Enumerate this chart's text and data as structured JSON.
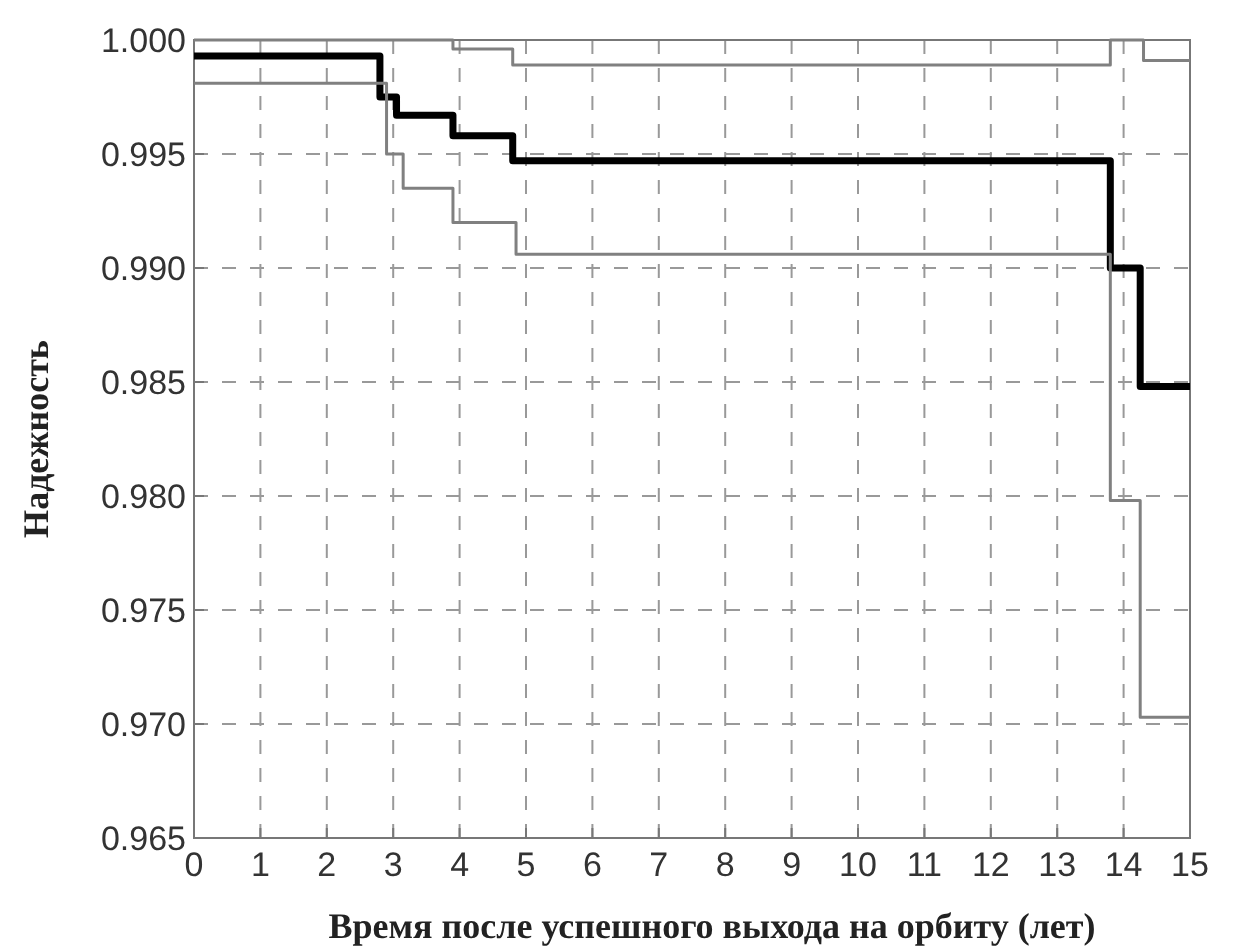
{
  "chart_data": {
    "type": "step",
    "xlabel": "Время после успешного выхода на орбиту (лет)",
    "ylabel": "Надежность",
    "xlim": [
      0,
      15
    ],
    "xticks": [
      0,
      1,
      2,
      3,
      4,
      5,
      6,
      7,
      8,
      9,
      10,
      11,
      12,
      13,
      14,
      15
    ],
    "ylim": [
      0.965,
      1.0
    ],
    "yticks": [
      0.965,
      {
        "value": 0.97,
        "label": "0.970"
      },
      0.975,
      {
        "value": 0.98,
        "label": "0.980"
      },
      0.985,
      {
        "value": 0.99,
        "label": "0.990"
      },
      0.995,
      {
        "value": 1.0,
        "label": "1.000"
      }
    ],
    "grid": true,
    "line_style": "solid",
    "marker": "none",
    "series": [
      {
        "color": "#000000",
        "x": [
          0,
          2.8,
          3.05,
          3.9,
          4.8,
          13.8,
          14.25,
          15
        ],
        "values": [
          0.9993,
          0.9975,
          0.9967,
          0.9958,
          0.9947,
          0.99,
          0.9848,
          0.9848
        ]
      },
      {
        "color": "#808080",
        "x": [
          0,
          3.9,
          4.8,
          13.8,
          14.3,
          15
        ],
        "values": [
          1.0,
          0.9996,
          0.9989,
          1.0,
          0.9991,
          0.9991
        ]
      },
      {
        "color": "#808080",
        "x": [
          0,
          2.9,
          3.15,
          3.9,
          4.85,
          13.8,
          14.25,
          15
        ],
        "values": [
          0.9981,
          0.995,
          0.9935,
          0.992,
          0.9906,
          0.9798,
          0.9703,
          0.9703
        ]
      }
    ]
  }
}
